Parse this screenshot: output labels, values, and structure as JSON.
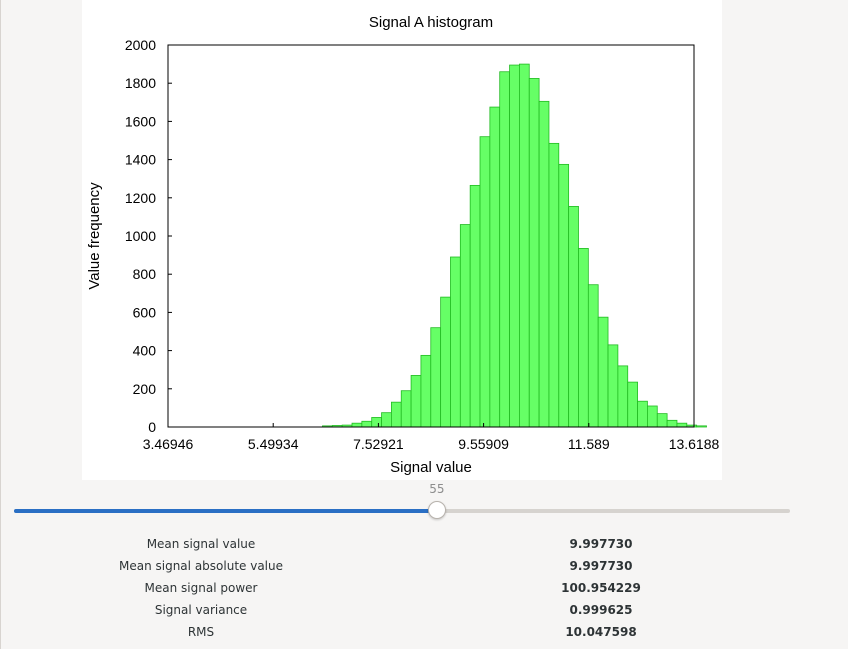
{
  "chart_data": {
    "type": "bar",
    "title": "Signal A histogram",
    "xlabel": "Signal value",
    "ylabel": "Value frequency",
    "xlim": [
      3.46946,
      13.6188
    ],
    "ylim": [
      0,
      2000
    ],
    "x_ticks": [
      "3.46946",
      "5.49934",
      "7.52921",
      "9.55909",
      "11.589",
      "13.6188"
    ],
    "y_ticks": [
      "0",
      "200",
      "400",
      "600",
      "800",
      "1000",
      "1200",
      "1400",
      "1600",
      "1800",
      "2000"
    ],
    "bin_start": 6.45,
    "bin_width": 0.19,
    "values": [
      6,
      8,
      10,
      20,
      30,
      50,
      75,
      130,
      190,
      270,
      375,
      520,
      680,
      890,
      1060,
      1265,
      1520,
      1675,
      1860,
      1895,
      1900,
      1825,
      1705,
      1485,
      1375,
      1155,
      935,
      745,
      575,
      430,
      320,
      235,
      135,
      110,
      70,
      35,
      20,
      10,
      6
    ],
    "bar_color": "#66ff66",
    "bar_edge": "#22bb22",
    "grid": false
  },
  "slider": {
    "value": "55",
    "fraction": 0.545
  },
  "stats": [
    {
      "label": "Mean signal value",
      "value": "9.997730"
    },
    {
      "label": "Mean signal absolute value",
      "value": "9.997730"
    },
    {
      "label": "Mean signal power",
      "value": "100.954229"
    },
    {
      "label": "Signal variance",
      "value": "0.999625"
    },
    {
      "label": "RMS",
      "value": "10.047598"
    }
  ]
}
